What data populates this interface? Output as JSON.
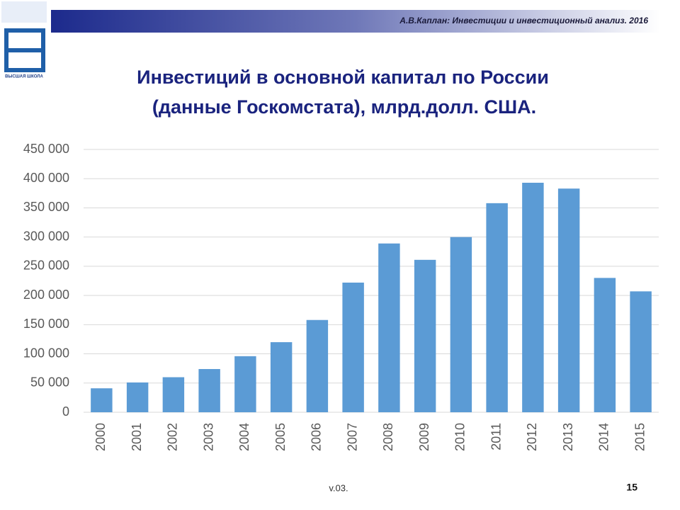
{
  "header": {
    "text": "А.В.Каплан: Инвестиции и инвестиционный анализ. 2016",
    "logo_text": "ВЫСШАЯ ШКОЛА"
  },
  "chart_data": {
    "type": "bar",
    "title": [
      "Инвестиций в основной капитал по России",
      "(данные Госкомстата), млрд.долл. США."
    ],
    "categories": [
      "2000",
      "2001",
      "2002",
      "2003",
      "2004",
      "2005",
      "2006",
      "2007",
      "2008",
      "2009",
      "2010",
      "2011",
      "2012",
      "2013",
      "2014",
      "2015"
    ],
    "values": [
      41000,
      51000,
      60000,
      74000,
      96000,
      120000,
      158000,
      222000,
      289000,
      261000,
      300000,
      358000,
      393000,
      383000,
      230000,
      207000
    ],
    "color": "#5b9bd5",
    "ylim": [
      0,
      450000
    ],
    "yticks": [
      {
        "value": 0,
        "label": "0"
      },
      {
        "value": 50000,
        "label": "50 000"
      },
      {
        "value": 100000,
        "label": "100 000"
      },
      {
        "value": 150000,
        "label": "150 000"
      },
      {
        "value": 200000,
        "label": "200 000"
      },
      {
        "value": 250000,
        "label": "250 000"
      },
      {
        "value": 300000,
        "label": "300 000"
      },
      {
        "value": 350000,
        "label": "350 000"
      },
      {
        "value": 400000,
        "label": "400 000"
      },
      {
        "value": 450000,
        "label": "450 000"
      }
    ],
    "grid": true
  },
  "footer": {
    "version": "v.03.",
    "page": "15"
  }
}
